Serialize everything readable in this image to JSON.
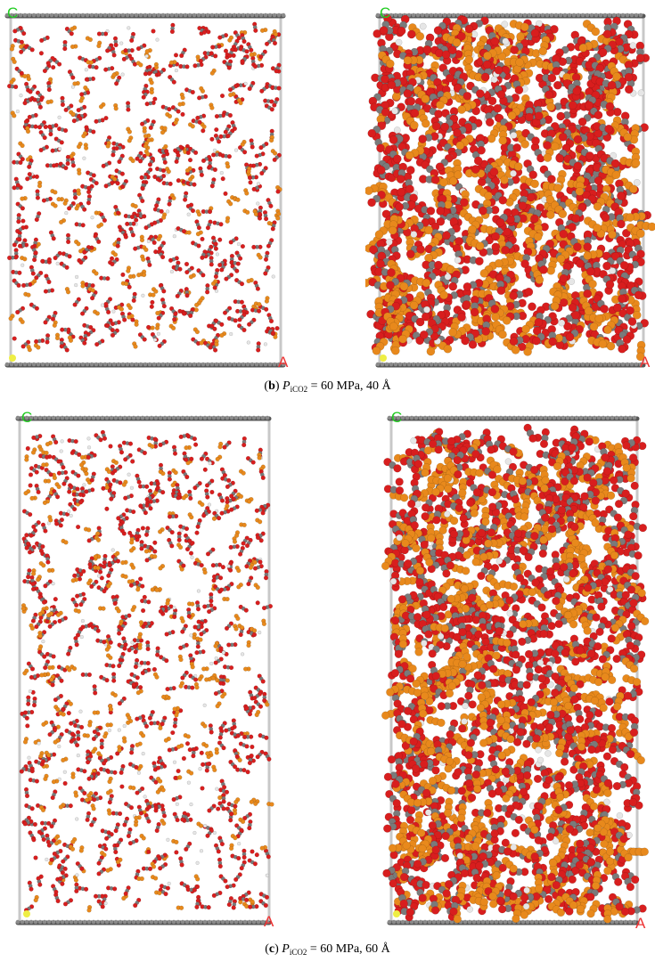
{
  "panels": [
    {
      "id": "b",
      "caption": {
        "label": "b",
        "symbol": "P",
        "subscript": "iCO2",
        "text": " = 60 MPa, 40 Å"
      },
      "views": [
        {
          "name": "sparse-view",
          "axis_c": "C",
          "axis_a": "A"
        },
        {
          "name": "dense-view",
          "axis_c": "C",
          "axis_a": "A"
        }
      ]
    },
    {
      "id": "c",
      "caption": {
        "label": "c",
        "symbol": "P",
        "subscript": "iCO2",
        "text": " = 60 MPa, 60 Å"
      },
      "views": [
        {
          "name": "sparse-view",
          "axis_c": "C",
          "axis_a": "A"
        },
        {
          "name": "dense-view",
          "axis_c": "C",
          "axis_a": "A"
        }
      ]
    }
  ],
  "colors": {
    "oxygen": "#d81e1e",
    "carbon": "#7a7a7a",
    "alkane": "#e8891c",
    "hydrogen": "#e6e6e6",
    "frame": "#c8c8c8",
    "graphene": "#666666",
    "axis_c": "#22cc22",
    "axis_a": "#ee3333",
    "origin": "#eeee44"
  }
}
